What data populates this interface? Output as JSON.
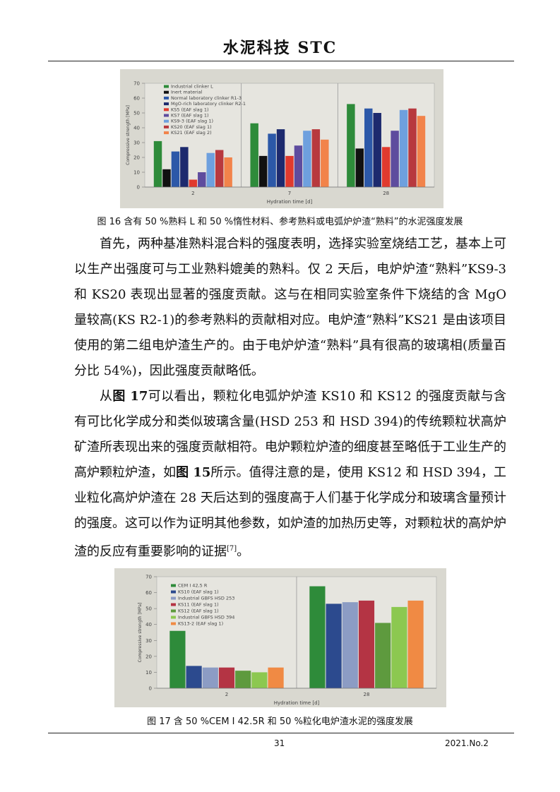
{
  "header": {
    "title": "水泥科技 STC"
  },
  "chart_data": [
    {
      "type": "bar",
      "y_label": "Compressive strength [MPa]",
      "x_label": "Hydration time [d]",
      "categories": [
        "2",
        "7",
        "28"
      ],
      "ylim": [
        0,
        70
      ],
      "yticks": [
        0,
        10,
        20,
        30,
        40,
        50,
        60,
        70
      ],
      "series": [
        {
          "name": "Industrial clinker L",
          "color": "#2e8b3a",
          "values": [
            31,
            43,
            56
          ]
        },
        {
          "name": "Inert material",
          "color": "#111111",
          "values": [
            12,
            21,
            26
          ]
        },
        {
          "name": "Normal laboratory clinker R1-3",
          "color": "#2c58a8",
          "values": [
            24,
            36,
            53
          ]
        },
        {
          "name": "MgO-rich laboratory clinker R2-1",
          "color": "#1d2a6e",
          "values": [
            27,
            39,
            50
          ]
        },
        {
          "name": "KS5 (EAF slag 1)",
          "color": "#e03a2e",
          "values": [
            5,
            21,
            27
          ]
        },
        {
          "name": "KS7 (EAF slag 1)",
          "color": "#5e4c9e",
          "values": [
            10,
            28,
            38
          ]
        },
        {
          "name": "KS9-3 (EAF slag 1)",
          "color": "#6ea0de",
          "values": [
            23,
            38,
            52
          ]
        },
        {
          "name": "KS20 (EAF slag 1)",
          "color": "#b8393e",
          "values": [
            25,
            39,
            53
          ]
        },
        {
          "name": "KS21 (EAF slag 2)",
          "color": "#f2834a",
          "values": [
            20,
            32,
            48
          ]
        }
      ]
    },
    {
      "type": "bar",
      "y_label": "Compressive strength [MPa]",
      "x_label": "Hydration time [d]",
      "categories": [
        "2",
        "28"
      ],
      "ylim": [
        0,
        70
      ],
      "yticks": [
        0,
        10,
        20,
        30,
        40,
        50,
        60,
        70
      ],
      "series": [
        {
          "name": "CEM I 42,5 R",
          "color": "#2e8b3a",
          "values": [
            36,
            64
          ]
        },
        {
          "name": "KS10 (EAF slag 1)",
          "color": "#2c4a8e",
          "values": [
            14,
            53
          ]
        },
        {
          "name": "Industrial GBFS HSD 253",
          "color": "#8c9cc4",
          "values": [
            13,
            54
          ]
        },
        {
          "name": "KS11 (EAF slag 1)",
          "color": "#b43444",
          "values": [
            13,
            55
          ]
        },
        {
          "name": "KS12 (EAF slag 1)",
          "color": "#5e9a3e",
          "values": [
            11,
            41
          ]
        },
        {
          "name": "Industrial GBFS HSD 394",
          "color": "#8cc850",
          "values": [
            10,
            51
          ]
        },
        {
          "name": "KS13-2 (EAF slag 1)",
          "color": "#f08a44",
          "values": [
            13,
            55
          ]
        }
      ]
    }
  ],
  "captions": [
    "图 16 含有 50 %熟料 L 和 50 %惰性材料、参考熟料或电弧炉炉渣“熟料”的水泥强度发展",
    "图 17 含 50 %CEM Ⅰ 42.5R 和 50 %粒化电炉渣水泥的强度发展"
  ],
  "paragraphs": [
    [
      "首先，两种基准熟料混合料的强度表明，选择实验室烧结工艺，基本上可以生产出强度可与工业熟料媲美的熟料。仅 2 天后，电炉炉渣“熟料”KS9-3 和 KS20 表现出显著的强度贡献。这与在相同实验室条件下烧结的含 MgO 量较高(KS R2-1)的参考熟料的贡献相对应。电炉渣“熟料”KS21 是由该项目使用的第二组电炉渣生产的。由于电炉炉渣“熟料”具有很高的玻璃相(质量百分比 54%)，因此强度贡献略低。"
    ],
    [
      "从",
      "图 17",
      "可以看出，颗粒化电弧炉炉渣 KS10 和 KS12 的强度贡献与含有可比化学成分和类似玻璃含量(HSD 253 和 HSD 394)的传统颗粒状高炉矿渣所表现出来的强度贡献相符。电炉颗粒炉渣的细度甚至略低于工业生产的高炉颗粒炉渣，如",
      "图 15",
      "所示。值得注意的是，使用 KS12 和 HSD 394，工业粒化高炉炉渣在 28 天后达到的强度高于人们基于化学成分和玻璃含量预计的强度。这可以作为证明其他参数，如炉渣的加热历史等，对颗粒状的高炉炉渣的反应有重要影响的证据",
      "[7]",
      "。"
    ]
  ],
  "footer": {
    "page": "31",
    "issue": "2021.No.2"
  }
}
